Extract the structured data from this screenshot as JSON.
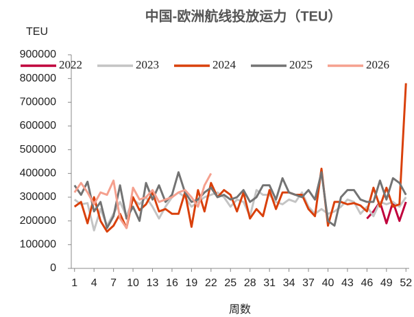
{
  "chart_data": {
    "type": "line",
    "title": "中国-欧洲航线投放运力（TEU）",
    "y_label": "TEU",
    "x_label": "周数",
    "x": [
      1,
      2,
      3,
      4,
      5,
      6,
      7,
      8,
      9,
      10,
      11,
      12,
      13,
      14,
      15,
      16,
      17,
      18,
      19,
      20,
      21,
      22,
      23,
      24,
      25,
      26,
      27,
      28,
      29,
      30,
      31,
      32,
      33,
      34,
      35,
      36,
      37,
      38,
      39,
      40,
      41,
      42,
      43,
      44,
      45,
      46,
      47,
      48,
      49,
      50,
      51,
      52
    ],
    "xlim": [
      0.5,
      52.5
    ],
    "xticks": [
      1,
      4,
      7,
      10,
      13,
      16,
      19,
      22,
      25,
      28,
      31,
      34,
      37,
      40,
      43,
      46,
      49,
      52
    ],
    "ylim": [
      0,
      900000
    ],
    "yticks": [
      0,
      100000,
      200000,
      300000,
      400000,
      500000,
      600000,
      700000,
      800000,
      900000
    ],
    "legend": "top",
    "series": [
      {
        "name": "2022",
        "color": "#c0003c",
        "values": [
          null,
          null,
          null,
          null,
          null,
          null,
          null,
          null,
          null,
          null,
          null,
          null,
          null,
          null,
          null,
          null,
          null,
          null,
          null,
          null,
          null,
          null,
          null,
          null,
          null,
          null,
          null,
          null,
          null,
          null,
          null,
          null,
          null,
          null,
          null,
          null,
          null,
          null,
          null,
          null,
          null,
          null,
          null,
          null,
          null,
          210000,
          240000,
          280000,
          190000,
          280000,
          200000,
          280000
        ]
      },
      {
        "name": "2023",
        "color": "#c4c4c4",
        "values": [
          290000,
          270000,
          275000,
          160000,
          250000,
          180000,
          230000,
          280000,
          220000,
          290000,
          270000,
          300000,
          260000,
          210000,
          260000,
          300000,
          320000,
          300000,
          260000,
          280000,
          300000,
          310000,
          320000,
          300000,
          260000,
          290000,
          280000,
          220000,
          330000,
          310000,
          310000,
          280000,
          270000,
          290000,
          280000,
          320000,
          260000,
          230000,
          250000,
          230000,
          240000,
          260000,
          290000,
          280000,
          230000,
          260000,
          220000,
          280000,
          270000,
          280000,
          260000,
          300000
        ]
      },
      {
        "name": "2024",
        "color": "#d9400b",
        "values": [
          260000,
          280000,
          190000,
          300000,
          200000,
          155000,
          180000,
          230000,
          170000,
          300000,
          245000,
          270000,
          320000,
          240000,
          250000,
          230000,
          230000,
          320000,
          175000,
          330000,
          240000,
          360000,
          300000,
          330000,
          310000,
          240000,
          320000,
          210000,
          250000,
          220000,
          330000,
          250000,
          320000,
          320000,
          310000,
          310000,
          250000,
          220000,
          420000,
          180000,
          280000,
          280000,
          270000,
          275000,
          265000,
          240000,
          340000,
          260000,
          340000,
          260000,
          270000,
          780000
        ]
      },
      {
        "name": "2025",
        "color": "#737373",
        "values": [
          350000,
          310000,
          365000,
          240000,
          280000,
          170000,
          220000,
          350000,
          210000,
          260000,
          200000,
          360000,
          290000,
          350000,
          280000,
          310000,
          405000,
          320000,
          280000,
          290000,
          320000,
          340000,
          300000,
          310000,
          290000,
          300000,
          330000,
          280000,
          300000,
          350000,
          350000,
          290000,
          380000,
          320000,
          310000,
          300000,
          330000,
          290000,
          405000,
          200000,
          180000,
          300000,
          330000,
          330000,
          290000,
          280000,
          280000,
          370000,
          290000,
          380000,
          360000,
          310000
        ]
      },
      {
        "name": "2026",
        "color": "#f5a08e",
        "values": [
          320000,
          360000,
          320000,
          270000,
          320000,
          310000,
          370000,
          210000,
          170000,
          340000,
          290000,
          300000,
          330000,
          280000,
          290000,
          300000,
          320000,
          330000,
          300000,
          260000,
          350000,
          400000,
          null,
          null,
          null,
          null,
          null,
          null,
          null,
          null,
          null,
          null,
          null,
          null,
          null,
          null,
          null,
          null,
          null,
          null,
          null,
          null,
          null,
          null,
          null,
          null,
          null,
          null,
          null,
          null,
          null,
          null
        ]
      }
    ]
  }
}
